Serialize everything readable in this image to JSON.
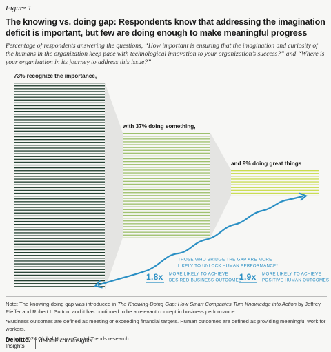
{
  "figure_label": "Figure 1",
  "title": "The knowing vs. doing gap: Respondents know that addressing the imagination deficit is important, but few are doing enough to make meaningful progress",
  "subtitle": "Percentage of respondents answering the questions, “How important is ensuring that the imagination and curiosity of the humans in the organization keep pace with technological innovation to your organization’s success?” and “Where is your organization in its journey to address this issue?”",
  "chart_data": {
    "type": "stripes",
    "values": [
      73,
      37,
      9
    ],
    "value_labels": [
      "73% recognize the importance,",
      "with 37% doing something,",
      "and 9% doing great things"
    ],
    "colors": [
      "#1e3b2c",
      "#9cbf6a",
      "#c9dc4c"
    ]
  },
  "callout": {
    "heading": [
      "THOSE WHO BRIDGE THE GAP ARE MORE",
      "LIKELY TO UNLOCK HUMAN PERFORMANCE*"
    ],
    "stats": [
      {
        "value": "1.8x",
        "text": [
          "MORE LIKELY TO ACHIEVE",
          "DESIRED BUSINESS OUTCOMES"
        ]
      },
      {
        "value": "1.9x",
        "text": [
          "MORE LIKELY TO ACHIEVE",
          "POSITIVE HUMAN OUTCOMES"
        ]
      }
    ]
  },
  "notes": {
    "note": [
      "Note: The knowing-doing gap was introduced in ",
      "The Knowing-Doing Gap: How Smart Companies Turn Knowledge into Action",
      " by Jeffrey Pfeffer and Robert I. Sutton, and it has continued to be a relevant concept in business performance."
    ],
    "footnote": "*Business outcomes are defined as meeting or exceeding financial targets. Human outcomes are defined as providing meaningful work for workers.",
    "source": "Source: 2024 Global Human Capital Trends research."
  },
  "footer": {
    "brand": "Deloitte.",
    "brand_sub": "Insights",
    "url": "deloitte.com/insights"
  }
}
